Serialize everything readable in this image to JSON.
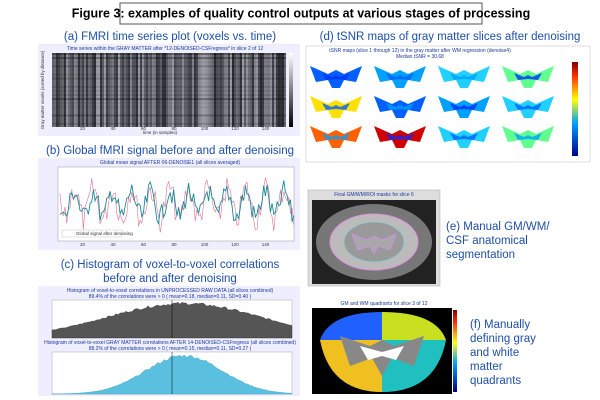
{
  "title": "Figure 3: examples of quality control outputs at various stages of processing",
  "panels": {
    "a": {
      "caption": "(a) FMRI time series plot (voxels vs. time)",
      "plot_title": "Time series within the GRAY MATTER after *12-DENOISED-CSFregress* in slice 2 of 12",
      "x_label": "time (in samples)",
      "y_label": "Gray matter voxels (sorted by distance)",
      "x_ticks": [
        "20",
        "40",
        "60",
        "80",
        "100",
        "120",
        "140"
      ]
    },
    "b": {
      "caption": "(b) Global fMRI signal before and after denoising",
      "plot_title": "Global mean signal AFTER 06-DENOISE1 (all slices averaged)",
      "legend": "Global signal after denoising",
      "x_ticks": [
        "20",
        "40",
        "60",
        "80",
        "100",
        "120",
        "140"
      ]
    },
    "c": {
      "caption_lines": [
        "(c) Histogram of voxel-to-voxel correlations",
        "before and after denoising"
      ],
      "top_title": "Histogram of voxel-to-voxel correlations in UNPROCESSED RAW DATA (all slices combined)",
      "top_stats": "89.4% of the correlations were > 0 ( mean=0.18, median=0.11, SD=0.40 )",
      "bottom_title": "Histogram of voxel-to-voxel GRAY MATTER correlations AFTER 14-DENOISED-CSFregress (all slices combined)",
      "bottom_stats": "88.2% of the correlations were > 0 ( mean=0.15, median=0.11, SD=0.27 )"
    },
    "d": {
      "caption": "(d) tSNR maps of gray matter slices after denoising",
      "plot_title": "tSNR maps (slice 1 through 12) in the gray matter after WM regression (denoise4)",
      "median": "Median tSNR = 30.68"
    },
    "e": {
      "caption_lines": [
        "(e) Manual GM/WM/",
        "CSF anatomical",
        "segmentation"
      ],
      "plot_title": "Final GM/WM/ROI masks for slice 6"
    },
    "f": {
      "caption_lines": [
        "(f) Manually",
        "defining gray",
        "and white",
        "matter",
        "quadrants"
      ],
      "plot_title": "GM and WM quadrants for slice 3 of 12"
    }
  }
}
